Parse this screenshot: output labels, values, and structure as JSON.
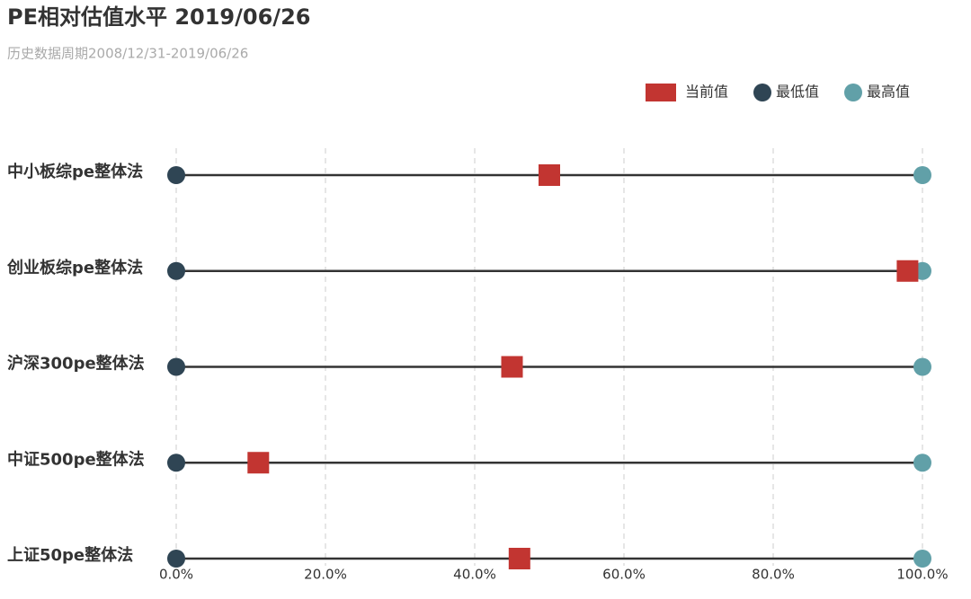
{
  "chart_data": {
    "type": "dot",
    "title": "PE相对估值水平 2019/06/26",
    "subtitle": "历史数据周期2008/12/31-2019/06/26",
    "categories": [
      "中小板综pe整体法",
      "创业板综pe整体法",
      "沪深300pe整体法",
      "中证500pe整体法",
      "上证50pe整体法"
    ],
    "series": [
      {
        "name": "当前值",
        "color": "#c23531",
        "marker": "square",
        "values": [
          50,
          98,
          45,
          11,
          46
        ]
      },
      {
        "name": "最低值",
        "color": "#2f4554",
        "marker": "circle",
        "values": [
          0,
          0,
          0,
          0,
          0
        ]
      },
      {
        "name": "最高值",
        "color": "#61a0a8",
        "marker": "circle",
        "values": [
          100,
          100,
          100,
          100,
          100
        ]
      }
    ],
    "xlim": [
      0,
      100
    ],
    "xticks": [
      {
        "value": 0,
        "label": "0.0%"
      },
      {
        "value": 20,
        "label": "20.0%"
      },
      {
        "value": 40,
        "label": "40.0%"
      },
      {
        "value": 60,
        "label": "60.0%"
      },
      {
        "value": 80,
        "label": "80.0%"
      },
      {
        "value": 100,
        "label": "100.0%"
      }
    ],
    "grid": true,
    "legend": "top-right"
  }
}
